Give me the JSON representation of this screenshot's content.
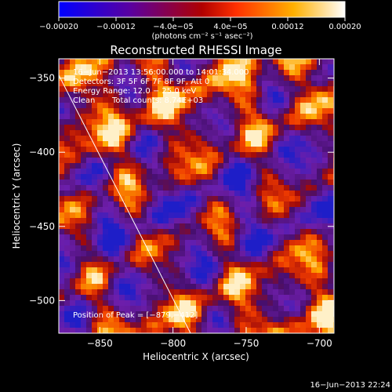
{
  "chart_data": {
    "type": "heatmap",
    "title": "Reconstructed RHESSI Image",
    "xlabel": "Heliocentric X (arcsec)",
    "ylabel": "Heliocentric Y (arcsec)",
    "xlim": [
      -878,
      -690
    ],
    "ylim": [
      -522,
      -337
    ],
    "x_ticks": [
      -850,
      -800,
      -750,
      -700
    ],
    "y_ticks": [
      -350,
      -400,
      -450,
      -500
    ],
    "x_tick_labels": [
      "−850",
      "−800",
      "−750",
      "−700"
    ],
    "y_tick_labels": [
      "−350",
      "−400",
      "−450",
      "−500"
    ],
    "colorbar": {
      "range": [
        -0.0002,
        0.0002
      ],
      "tick_values": [
        -0.0002,
        -0.00012,
        -4e-05,
        4e-05,
        0.00012,
        0.0002
      ],
      "tick_labels": [
        "−0.00020",
        "−0.00012",
        "−4.0e−05",
        "4.0e−05",
        "0.00012",
        "0.00020"
      ],
      "unit_label": "(photons cm⁻² s⁻¹ asec⁻²)",
      "colors": [
        "#0000ff",
        "#5a00a0",
        "#b00000",
        "#ff3000",
        "#ffb000",
        "#ffffff"
      ]
    },
    "annotations": {
      "time_range": "16−Jun−2013 13:56:00.000 to 14:01:34.000",
      "detectors": "Detectors: 3F 5F 6F 7F 8F 9F, Att 0",
      "energy": "Energy Range: 12.0 − 25.0 keV",
      "algorithm": "Clean",
      "counts": "Total counts: 8.74E+03",
      "peak": "Position of Peak = [−879,−412]"
    },
    "limb_line": {
      "x": [
        -878,
        -788
      ],
      "y": [
        -348,
        -522
      ]
    },
    "timestamp": "16−Jun−2013 22:24"
  }
}
